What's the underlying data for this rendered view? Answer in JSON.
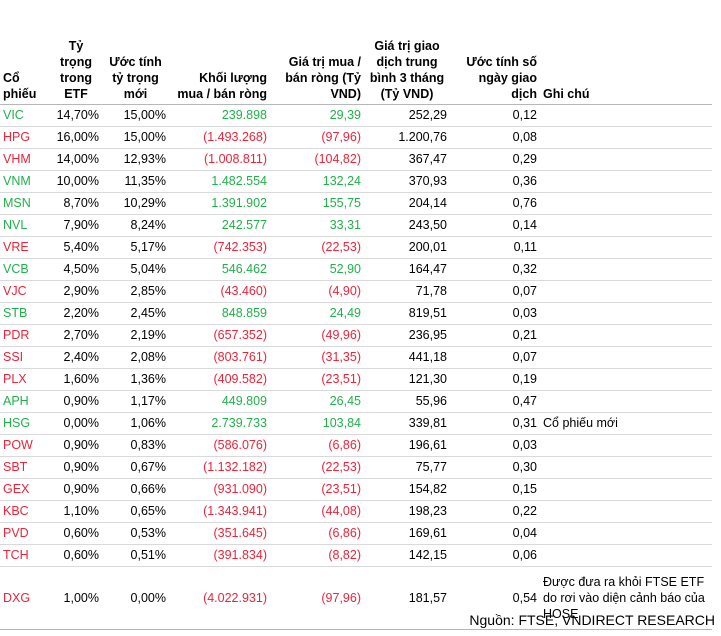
{
  "headers": {
    "ticker": "Cổ phiếu",
    "weight": "Tỷ trọng trong ETF",
    "new_weight": "Ước tính tỷ trọng mới",
    "volume": "Khối lượng mua / bán ròng",
    "value": "Giá trị mua / bán ròng (Tỷ VND)",
    "avg_value": "Giá trị giao dịch trung bình 3 tháng (Tỷ VND)",
    "days": "Ước tính số ngày giao dịch",
    "note": "Ghi chú"
  },
  "rows": [
    {
      "ticker": "VIC",
      "weight": "14,70%",
      "new_weight": "15,00%",
      "volume": "239.898",
      "value": "29,39",
      "avg": "252,29",
      "days": "0,12",
      "note": "",
      "sign": "pos"
    },
    {
      "ticker": "HPG",
      "weight": "16,00%",
      "new_weight": "15,00%",
      "volume": "(1.493.268)",
      "value": "(97,96)",
      "avg": "1.200,76",
      "days": "0,08",
      "note": "",
      "sign": "neg"
    },
    {
      "ticker": "VHM",
      "weight": "14,00%",
      "new_weight": "12,93%",
      "volume": "(1.008.811)",
      "value": "(104,82)",
      "avg": "367,47",
      "days": "0,29",
      "note": "",
      "sign": "neg"
    },
    {
      "ticker": "VNM",
      "weight": "10,00%",
      "new_weight": "11,35%",
      "volume": "1.482.554",
      "value": "132,24",
      "avg": "370,93",
      "days": "0,36",
      "note": "",
      "sign": "pos"
    },
    {
      "ticker": "MSN",
      "weight": "8,70%",
      "new_weight": "10,29%",
      "volume": "1.391.902",
      "value": "155,75",
      "avg": "204,14",
      "days": "0,76",
      "note": "",
      "sign": "pos"
    },
    {
      "ticker": "NVL",
      "weight": "7,90%",
      "new_weight": "8,24%",
      "volume": "242.577",
      "value": "33,31",
      "avg": "243,50",
      "days": "0,14",
      "note": "",
      "sign": "pos"
    },
    {
      "ticker": "VRE",
      "weight": "5,40%",
      "new_weight": "5,17%",
      "volume": "(742.353)",
      "value": "(22,53)",
      "avg": "200,01",
      "days": "0,11",
      "note": "",
      "sign": "neg"
    },
    {
      "ticker": "VCB",
      "weight": "4,50%",
      "new_weight": "5,04%",
      "volume": "546.462",
      "value": "52,90",
      "avg": "164,47",
      "days": "0,32",
      "note": "",
      "sign": "pos"
    },
    {
      "ticker": "VJC",
      "weight": "2,90%",
      "new_weight": "2,85%",
      "volume": "(43.460)",
      "value": "(4,90)",
      "avg": "71,78",
      "days": "0,07",
      "note": "",
      "sign": "neg"
    },
    {
      "ticker": "STB",
      "weight": "2,20%",
      "new_weight": "2,45%",
      "volume": "848.859",
      "value": "24,49",
      "avg": "819,51",
      "days": "0,03",
      "note": "",
      "sign": "pos"
    },
    {
      "ticker": "PDR",
      "weight": "2,70%",
      "new_weight": "2,19%",
      "volume": "(657.352)",
      "value": "(49,96)",
      "avg": "236,95",
      "days": "0,21",
      "note": "",
      "sign": "neg"
    },
    {
      "ticker": "SSI",
      "weight": "2,40%",
      "new_weight": "2,08%",
      "volume": "(803.761)",
      "value": "(31,35)",
      "avg": "441,18",
      "days": "0,07",
      "note": "",
      "sign": "neg"
    },
    {
      "ticker": "PLX",
      "weight": "1,60%",
      "new_weight": "1,36%",
      "volume": "(409.582)",
      "value": "(23,51)",
      "avg": "121,30",
      "days": "0,19",
      "note": "",
      "sign": "neg"
    },
    {
      "ticker": "APH",
      "weight": "0,90%",
      "new_weight": "1,17%",
      "volume": "449.809",
      "value": "26,45",
      "avg": "55,96",
      "days": "0,47",
      "note": "",
      "sign": "pos"
    },
    {
      "ticker": "HSG",
      "weight": "0,00%",
      "new_weight": "1,06%",
      "volume": "2.739.733",
      "value": "103,84",
      "avg": "339,81",
      "days": "0,31",
      "note": "Cổ phiếu mới",
      "sign": "pos"
    },
    {
      "ticker": "POW",
      "weight": "0,90%",
      "new_weight": "0,83%",
      "volume": "(586.076)",
      "value": "(6,86)",
      "avg": "196,61",
      "days": "0,03",
      "note": "",
      "sign": "neg"
    },
    {
      "ticker": "SBT",
      "weight": "0,90%",
      "new_weight": "0,67%",
      "volume": "(1.132.182)",
      "value": "(22,53)",
      "avg": "75,77",
      "days": "0,30",
      "note": "",
      "sign": "neg"
    },
    {
      "ticker": "GEX",
      "weight": "0,90%",
      "new_weight": "0,66%",
      "volume": "(931.090)",
      "value": "(23,51)",
      "avg": "154,82",
      "days": "0,15",
      "note": "",
      "sign": "neg"
    },
    {
      "ticker": "KBC",
      "weight": "1,10%",
      "new_weight": "0,65%",
      "volume": "(1.343.941)",
      "value": "(44,08)",
      "avg": "198,23",
      "days": "0,22",
      "note": "",
      "sign": "neg"
    },
    {
      "ticker": "PVD",
      "weight": "0,60%",
      "new_weight": "0,53%",
      "volume": "(351.645)",
      "value": "(6,86)",
      "avg": "169,61",
      "days": "0,04",
      "note": "",
      "sign": "neg"
    },
    {
      "ticker": "TCH",
      "weight": "0,60%",
      "new_weight": "0,51%",
      "volume": "(391.834)",
      "value": "(8,82)",
      "avg": "142,15",
      "days": "0,06",
      "note": "",
      "sign": "neg"
    },
    {
      "ticker": "DXG",
      "weight": "1,00%",
      "new_weight": "0,00%",
      "volume": "(4.022.931)",
      "value": "(97,96)",
      "avg": "181,57",
      "days": "0,54",
      "note": "Được đưa ra khỏi FTSE ETF do rơi vào diện cảnh báo của HOSE",
      "sign": "neg",
      "tall": true
    }
  ],
  "source": "Nguồn: FTSE, VNDIRECT RESEARCH",
  "colors": {
    "positive": "#22b04a",
    "negative": "#e8253a"
  }
}
